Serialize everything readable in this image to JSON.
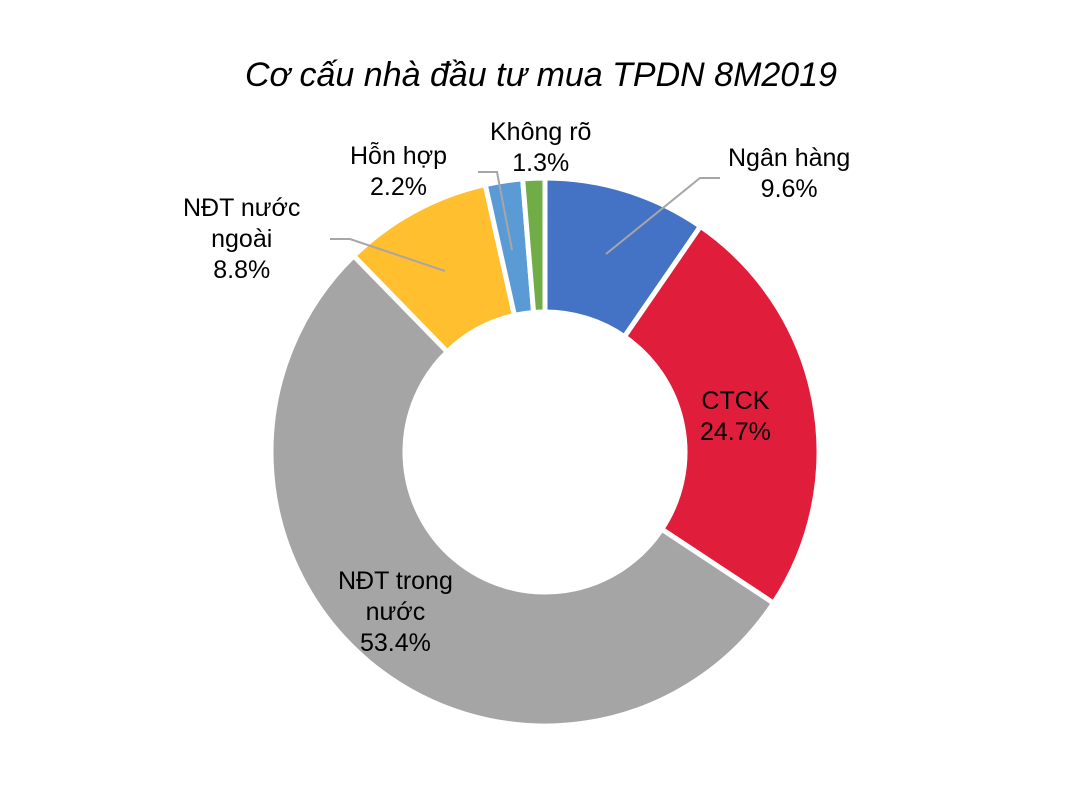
{
  "chart_data": {
    "type": "pie",
    "variant": "donut",
    "title": "Cơ cấu nhà đầu tư mua TPDN 8M2019",
    "start_angle": "12 o'clock, clockwise",
    "categories": [
      "Ngân hàng",
      "CTCK",
      "NĐT trong nước",
      "NĐT nước ngoài",
      "Hỗn hợp",
      "Không rõ"
    ],
    "values": [
      9.6,
      24.7,
      53.4,
      8.8,
      2.2,
      1.3
    ],
    "unit": "%",
    "colors": [
      "#4472C4",
      "#E01E3C",
      "#A5A5A5",
      "#FFBF2F",
      "#5B9BD5",
      "#70AD47"
    ],
    "labels": [
      {
        "name": "Ngân hàng",
        "value": "9.6%"
      },
      {
        "name": "CTCK",
        "value": "24.7%"
      },
      {
        "name": "NĐT trong nước",
        "value": "53.4%"
      },
      {
        "name": "NĐT nước ngoài",
        "value": "8.8%"
      },
      {
        "name": "Hỗn hợp",
        "value": "2.2%"
      },
      {
        "name": "Không rõ",
        "value": "1.3%"
      }
    ],
    "legend": "none (data labels on chart)"
  },
  "labels": {
    "ngan_hang": {
      "line1": "Ngân hàng",
      "line2": "9.6%"
    },
    "ctck": {
      "line1": "CTCK",
      "line2": "24.7%"
    },
    "trong_nuoc": {
      "line1": "NĐT trong",
      "line2": "nước",
      "line3": "53.4%"
    },
    "nuoc_ngoai": {
      "line1": "NĐT nước",
      "line2": "ngoài",
      "line3": "8.8%"
    },
    "hon_hop": {
      "line1": "Hỗn hợp",
      "line2": "2.2%"
    },
    "khong_ro": {
      "line1": "Không rõ",
      "line2": "1.3%"
    }
  }
}
